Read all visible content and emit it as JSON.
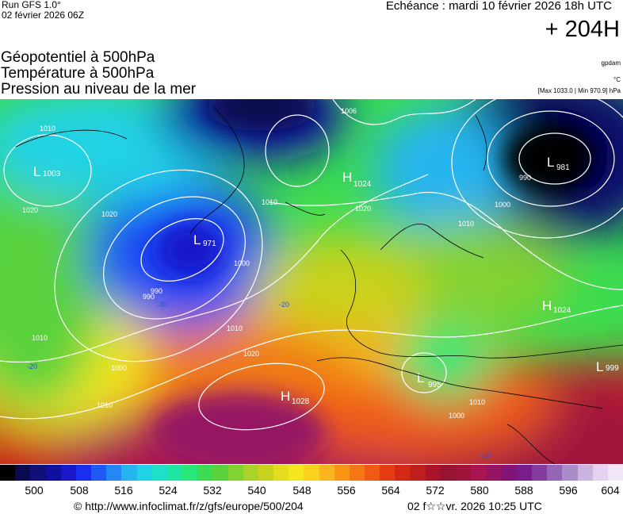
{
  "header": {
    "run": "Run GFS 1.0°",
    "run_date": "02 février 2026 06Z",
    "valid": "Echéance : mardi 10 février 2026 18h UTC",
    "horizon": "+ 204H"
  },
  "titles": {
    "line1": "Géopotentiel à 500hPa",
    "line2": "Température à 500hPa",
    "line3": "Pression au niveau de la mer"
  },
  "units": {
    "geopotential": "gpdam",
    "temperature": "°C",
    "pressure_range": "[Max 1033.0 | Min 970.9] hPa"
  },
  "legend": {
    "ticks": [
      "500",
      "508",
      "516",
      "524",
      "532",
      "540",
      "548",
      "556",
      "564",
      "572",
      "580",
      "588",
      "596",
      "604"
    ],
    "colors": [
      "#000000",
      "#0a0a50",
      "#101078",
      "#1010a0",
      "#1818c8",
      "#1a2ef0",
      "#1f5af5",
      "#2388f5",
      "#25b4f0",
      "#20d2e6",
      "#1ee0c8",
      "#1ee6a0",
      "#28e678",
      "#3cdc50",
      "#5ad23c",
      "#82d232",
      "#aad228",
      "#c8d21e",
      "#e6dc1e",
      "#f5e61e",
      "#fad21e",
      "#fab41e",
      "#fa9614",
      "#f57814",
      "#f05a14",
      "#e63c14",
      "#d22814",
      "#be1e1e",
      "#aa1428",
      "#961432",
      "#a0143c",
      "#aa1450",
      "#961464",
      "#821478",
      "#781e8c",
      "#823ca0",
      "#9664b4",
      "#aa8cc8",
      "#c8b4dc",
      "#e6d2ee",
      "#f0e6f5"
    ]
  },
  "footer": {
    "copyright": "© http://www.infoclimat.fr/z/gfs/europe/500/204",
    "generated": "02 f☆☆vr. 2026 10:25 UTC"
  },
  "map": {
    "pressure_centers": [
      {
        "type": "L",
        "value": "1003"
      },
      {
        "type": "H",
        "value": "1024"
      },
      {
        "type": "L",
        "value": "971"
      },
      {
        "type": "L",
        "value": "981"
      },
      {
        "type": "H",
        "value": "1024"
      },
      {
        "type": "L",
        "value": "995"
      },
      {
        "type": "H",
        "value": "1028"
      },
      {
        "type": "L",
        "value": "999"
      }
    ],
    "isobar_labels": [
      "1010",
      "1020",
      "1006",
      "1020",
      "1010",
      "1000",
      "990",
      "1010",
      "1020",
      "1000",
      "1010",
      "990",
      "1000",
      "1010",
      "1020",
      "1010",
      "1000",
      "1010",
      "990"
    ],
    "temperature_labels": [
      "-30",
      "-20",
      "-20",
      "-10"
    ]
  }
}
